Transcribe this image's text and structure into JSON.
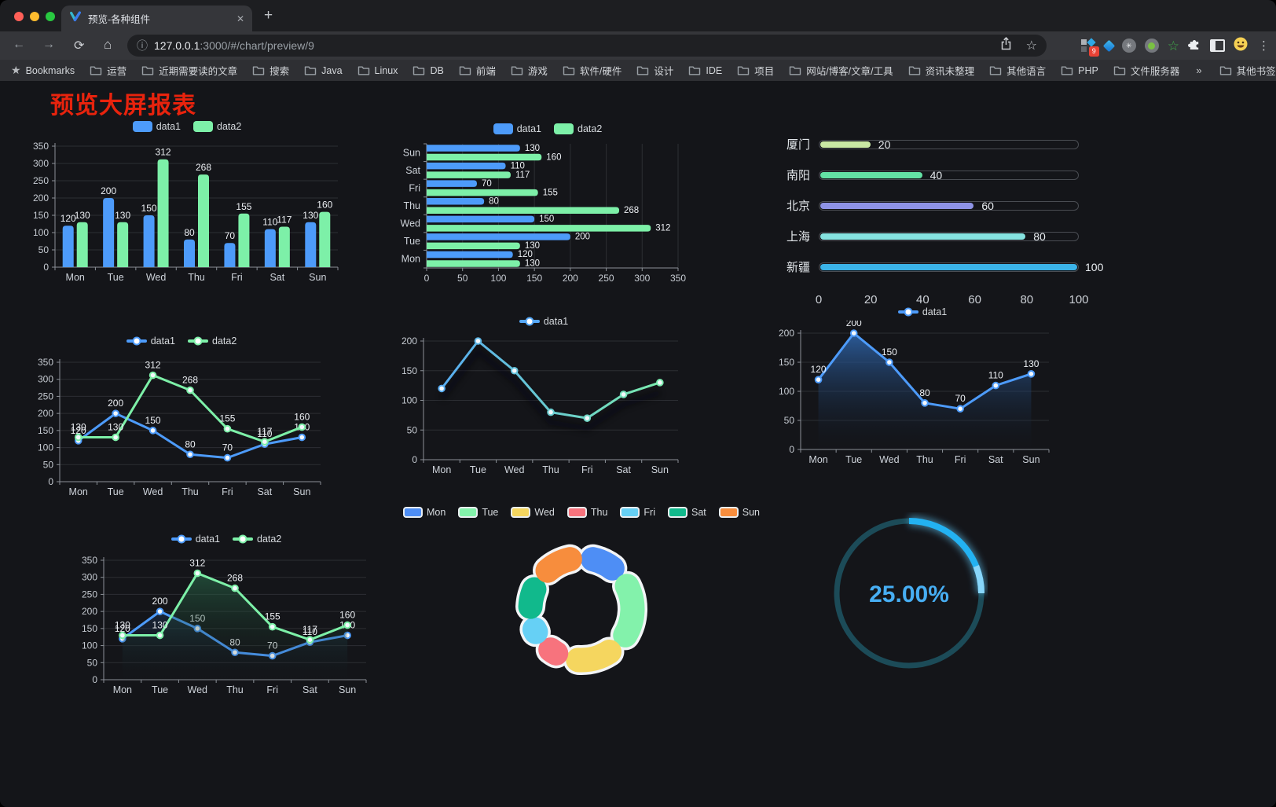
{
  "browser": {
    "traffic_lights": [
      "#ff5f57",
      "#febc2e",
      "#28c840"
    ],
    "tab": {
      "title": "预览-各种组件",
      "close": "✕"
    },
    "new_tab_label": "+",
    "icons": {
      "back": "←",
      "forward": "→",
      "reload": "⟳",
      "home": "⌂",
      "info": "ⓘ",
      "star": "☆",
      "kebab": "⋮",
      "overflow": "»",
      "bookmark_star": "★",
      "green_star": "☆",
      "circle_glyph": "✳"
    },
    "url": {
      "host": "127.0.0.1",
      "rest": ":3000/#/chart/preview/9"
    },
    "extension_badge": "9",
    "bookmarks_label": "Bookmarks",
    "bookmarks": [
      "运营",
      "近期需要读的文章",
      "搜索",
      "Java",
      "Linux",
      "DB",
      "前端",
      "游戏",
      "软件/硬件",
      "设计",
      "IDE",
      "项目",
      "网站/博客/文章/工具",
      "资讯未整理",
      "其他语言",
      "PHP",
      "文件服务器"
    ],
    "other_bookmarks": "其他书签"
  },
  "page": {
    "title": "预览大屏报表",
    "title_color": "#e8230d"
  },
  "theme": {
    "background": "#141519",
    "axis": "#8b9097",
    "grid": "#2c2e33",
    "ytick": "#c6cbd2",
    "xtick": "#ced3da",
    "value_label": "#edf0f4",
    "legend_text": "#d6dade",
    "data1_color": "#4d9bfa",
    "data2_color": "#7df0a8"
  },
  "chart_data": [
    {
      "id": "c1",
      "type": "bar",
      "legend": "rect",
      "categories": [
        "Mon",
        "Tue",
        "Wed",
        "Thu",
        "Fri",
        "Sat",
        "Sun"
      ],
      "series": [
        {
          "name": "data1",
          "color": "#4d9bfa",
          "values": [
            120,
            200,
            150,
            80,
            70,
            110,
            130
          ]
        },
        {
          "name": "data2",
          "color": "#7df0a8",
          "values": [
            130,
            130,
            312,
            268,
            155,
            117,
            160
          ]
        }
      ],
      "ylim": [
        0,
        350
      ],
      "ytick_step": 50,
      "labels": true
    },
    {
      "id": "c2",
      "type": "hbar",
      "legend": "rect",
      "categories": [
        "Mon",
        "Tue",
        "Wed",
        "Thu",
        "Fri",
        "Sat",
        "Sun"
      ],
      "display_order": "reversed",
      "series": [
        {
          "name": "data1",
          "color": "#4d9bfa",
          "values": [
            120,
            200,
            150,
            80,
            70,
            110,
            130
          ]
        },
        {
          "name": "data2",
          "color": "#7df0a8",
          "values": [
            130,
            130,
            312,
            268,
            155,
            117,
            160
          ]
        }
      ],
      "xlim": [
        0,
        350
      ],
      "xtick_step": 50,
      "labels": true
    },
    {
      "id": "c3",
      "type": "progress",
      "max": 100,
      "axis_ticks": [
        0,
        20,
        40,
        60,
        80,
        100
      ],
      "rows": [
        {
          "label": "厦门",
          "value": 20,
          "color": "#c9e8a4"
        },
        {
          "label": "南阳",
          "value": 40,
          "color": "#63e2a5"
        },
        {
          "label": "北京",
          "value": 60,
          "color": "#8e93e6"
        },
        {
          "label": "上海",
          "value": 80,
          "color": "#86e3e0"
        },
        {
          "label": "新疆",
          "value": 100,
          "color": "#3bb3e8"
        }
      ]
    },
    {
      "id": "c4",
      "type": "line",
      "legend": "line",
      "categories": [
        "Mon",
        "Tue",
        "Wed",
        "Thu",
        "Fri",
        "Sat",
        "Sun"
      ],
      "series": [
        {
          "name": "data1",
          "color": "#4d9bfa",
          "values": [
            120,
            200,
            150,
            80,
            70,
            110,
            130
          ]
        },
        {
          "name": "data2",
          "color": "#7df0a8",
          "values": [
            130,
            130,
            312,
            268,
            155,
            117,
            160
          ]
        }
      ],
      "ylim": [
        0,
        350
      ],
      "ytick_step": 50,
      "labels": true
    },
    {
      "id": "c5",
      "type": "line",
      "legend": "line",
      "categories": [
        "Mon",
        "Tue",
        "Wed",
        "Thu",
        "Fri",
        "Sat",
        "Sun"
      ],
      "series": [
        {
          "name": "data1",
          "gradient": [
            "#55a7f7",
            "#7df0a8"
          ],
          "values": [
            120,
            200,
            150,
            80,
            70,
            110,
            130
          ]
        }
      ],
      "ylim": [
        0,
        200
      ],
      "ytick_step": 50,
      "labels": false,
      "shadow": true
    },
    {
      "id": "c6",
      "type": "line",
      "legend": "line",
      "categories": [
        "Mon",
        "Tue",
        "Wed",
        "Thu",
        "Fri",
        "Sat",
        "Sun"
      ],
      "series": [
        {
          "name": "data1",
          "color": "#4d9bfa",
          "area": [
            "rgba(47,103,175,0.85)",
            "rgba(18,26,38,0.02)"
          ],
          "values": [
            120,
            200,
            150,
            80,
            70,
            110,
            130
          ]
        }
      ],
      "ylim": [
        0,
        200
      ],
      "ytick_step": 50,
      "labels": true
    },
    {
      "id": "c7",
      "type": "line",
      "legend": "line",
      "categories": [
        "Mon",
        "Tue",
        "Wed",
        "Thu",
        "Fri",
        "Sat",
        "Sun"
      ],
      "series": [
        {
          "name": "data1",
          "color": "#4d9bfa",
          "area": [
            "rgba(43,96,166,0.65)",
            "rgba(18,24,34,0.02)"
          ],
          "values": [
            120,
            200,
            150,
            80,
            70,
            110,
            130
          ]
        },
        {
          "name": "data2",
          "color": "#7df0a8",
          "area": [
            "rgba(47,128,88,0.60)",
            "rgba(18,28,24,0.02)"
          ],
          "values": [
            130,
            130,
            312,
            268,
            155,
            117,
            160
          ]
        }
      ],
      "ylim": [
        0,
        350
      ],
      "ytick_step": 50,
      "labels": true
    },
    {
      "id": "c8",
      "type": "pie",
      "legend": "rect",
      "categories": [
        "Mon",
        "Tue",
        "Wed",
        "Thu",
        "Fri",
        "Sat",
        "Sun"
      ],
      "values": [
        120,
        200,
        150,
        80,
        70,
        110,
        130
      ],
      "colors": [
        "#4e8ef5",
        "#83f2ab",
        "#f5d65f",
        "#f7737d",
        "#66d0f5",
        "#11b98c",
        "#f78d3d"
      ],
      "border_color": "#f2f4f6"
    },
    {
      "id": "c9",
      "type": "gauge",
      "value": 25,
      "display": "25.00%",
      "bar_color": "#23b2f2",
      "track_color": "#1c4b58",
      "text_color": "#47aef3"
    }
  ]
}
